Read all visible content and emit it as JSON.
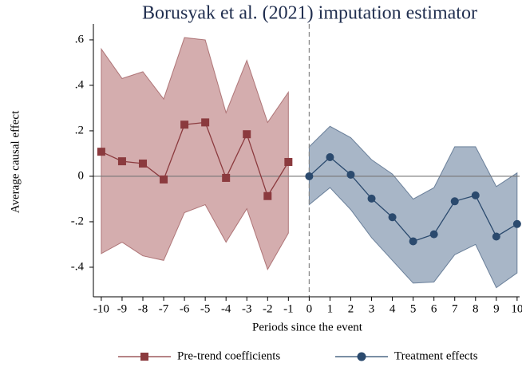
{
  "chart_data": {
    "type": "line",
    "title": "Borusyak et al. (2021) imputation estimator",
    "x_label": "Periods since the event",
    "y_label": "Average causal effect",
    "xlim": [
      -10.38,
      10.12
    ],
    "ylim": [
      -0.53,
      0.67
    ],
    "xticks": [
      -10,
      -9,
      -8,
      -7,
      -6,
      -5,
      -4,
      -3,
      -2,
      -1,
      0,
      1,
      2,
      3,
      4,
      5,
      6,
      7,
      8,
      9,
      10
    ],
    "yticks": [
      {
        "value": -0.4,
        "label": "-.4"
      },
      {
        "value": -0.2,
        "label": "-.2"
      },
      0,
      {
        "value": 0.2,
        "label": ".2"
      },
      {
        "value": 0.4,
        "label": ".4"
      },
      {
        "value": 0.6,
        "label": ".6"
      }
    ],
    "hline": 0,
    "vline": 0,
    "series": [
      {
        "name": "Pre-trend coefficients",
        "color": "#8b3a3e",
        "band_color": "#d4adae",
        "marker": "square",
        "x": [
          -10,
          -9,
          -8,
          -7,
          -6,
          -5,
          -4,
          -3,
          -2,
          -1
        ],
        "values": [
          0.108,
          0.066,
          0.056,
          -0.014,
          0.227,
          0.237,
          -0.007,
          0.185,
          -0.087,
          0.063
        ],
        "upper": [
          0.56,
          0.43,
          0.46,
          0.34,
          0.61,
          0.6,
          0.28,
          0.51,
          0.237,
          0.37
        ],
        "lower": [
          -0.34,
          -0.29,
          -0.35,
          -0.37,
          -0.16,
          -0.125,
          -0.29,
          -0.143,
          -0.41,
          -0.25
        ]
      },
      {
        "name": "Treatment effects",
        "color": "#2b4a6e",
        "band_color": "#a8b6c7",
        "marker": "circle",
        "x": [
          0,
          1,
          2,
          3,
          4,
          5,
          6,
          7,
          8,
          9,
          10
        ],
        "values": [
          0,
          0.084,
          0.007,
          -0.098,
          -0.18,
          -0.286,
          -0.255,
          -0.11,
          -0.084,
          -0.265,
          -0.21
        ],
        "upper": [
          0.13,
          0.22,
          0.17,
          0.073,
          0.01,
          -0.1,
          -0.05,
          0.13,
          0.13,
          -0.045,
          0.015
        ],
        "lower": [
          -0.125,
          -0.05,
          -0.147,
          -0.27,
          -0.37,
          -0.47,
          -0.465,
          -0.345,
          -0.3,
          -0.49,
          -0.425
        ]
      }
    ]
  }
}
